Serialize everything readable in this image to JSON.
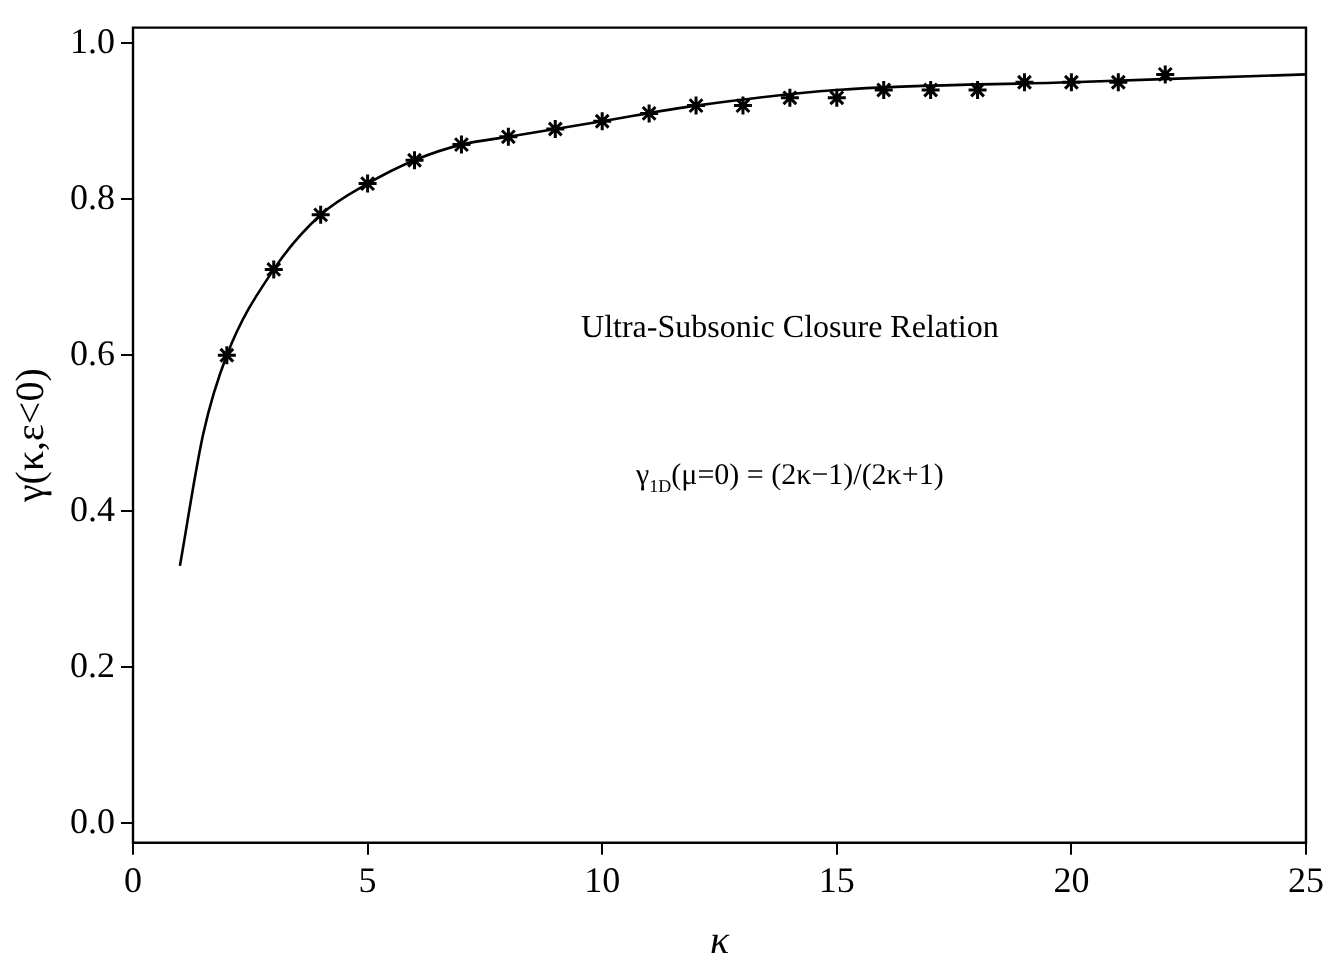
{
  "chart_data": {
    "type": "line",
    "xlabel": "κ",
    "ylabel": "γ(κ,ε<0)",
    "annotations": [
      "Ultra-Subsonic Closure Relation",
      "γ$_{1D}$(μ=0) = (2κ−1)/(2κ+1)"
    ],
    "series": [
      {
        "color": "#000000",
        "marker": "none",
        "x": [
          1,
          1.5,
          2,
          3,
          4,
          5,
          6,
          7,
          8,
          10,
          12,
          15,
          20,
          25
        ],
        "values": [
          0.33,
          0.5,
          0.6,
          0.71,
          0.78,
          0.82,
          0.85,
          0.87,
          0.88,
          0.9,
          0.92,
          0.94,
          0.95,
          0.96
        ]
      },
      {
        "type": "scatter",
        "color": "#000000",
        "marker": "cross",
        "x": [
          2,
          3,
          4,
          5,
          6,
          7,
          8,
          9,
          10,
          11,
          12,
          13,
          14,
          15,
          16,
          17,
          18,
          19,
          20,
          21,
          22
        ],
        "values": [
          0.6,
          0.71,
          0.78,
          0.82,
          0.85,
          0.87,
          0.88,
          0.89,
          0.9,
          0.91,
          0.92,
          0.92,
          0.93,
          0.93,
          0.94,
          0.94,
          0.94,
          0.95,
          0.95,
          0.95,
          0.96
        ]
      }
    ],
    "xlim": [
      0,
      25
    ],
    "xticks": [
      0,
      5,
      10,
      15,
      20,
      25
    ],
    "ylim": [
      -0.025,
      1.02
    ],
    "yticks": [
      {
        "value": 0,
        "label": "0.0"
      },
      0.2,
      0.4,
      0.6,
      0.8,
      {
        "value": 1,
        "label": "1.0"
      }
    ],
    "grid": false,
    "legend": false
  }
}
